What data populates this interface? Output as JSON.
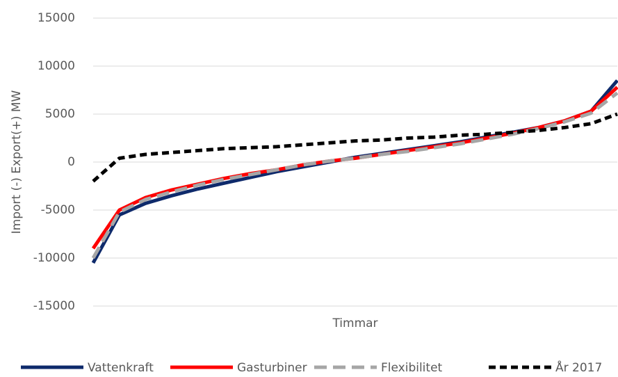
{
  "chart_data": {
    "type": "line",
    "y_label": "Import (-) Export(+)  MW",
    "x_label": "Timmar",
    "categories": [
      null,
      null,
      null,
      null,
      null,
      null,
      null,
      null,
      null,
      null,
      null,
      null,
      null,
      null,
      null,
      null,
      null,
      null,
      null,
      null,
      null
    ],
    "ylim": [
      -15000,
      15000
    ],
    "yticks": [
      -15000,
      -10000,
      -5000,
      0,
      5000,
      10000,
      15000
    ],
    "grid": true,
    "legend": "bottom",
    "series": [
      {
        "name": "Vattenkraft",
        "color": "#0e2a6b",
        "dash": "solid",
        "values": [
          -10500,
          -5500,
          -4300,
          -3500,
          -2800,
          -2200,
          -1600,
          -1000,
          -500,
          0,
          500,
          900,
          1300,
          1700,
          2100,
          2600,
          3100,
          3600,
          4300,
          5300,
          8500
        ]
      },
      {
        "name": "Gasturbiner",
        "color": "#ff0000",
        "dash": "solid",
        "values": [
          -9000,
          -5000,
          -3700,
          -2900,
          -2300,
          -1700,
          -1200,
          -800,
          -300,
          100,
          400,
          800,
          1200,
          1600,
          2000,
          2500,
          3000,
          3600,
          4300,
          5300,
          7800
        ]
      },
      {
        "name": "Flexibilitet",
        "color": "#a6a6a6",
        "dash": "long",
        "values": [
          -10000,
          -5200,
          -3900,
          -3100,
          -2400,
          -1800,
          -1300,
          -800,
          -300,
          100,
          400,
          800,
          1100,
          1500,
          1900,
          2400,
          2900,
          3500,
          4200,
          5100,
          7200
        ]
      },
      {
        "name": "År 2017",
        "color": "#000000",
        "dash": "short",
        "values": [
          -2000,
          400,
          800,
          1000,
          1200,
          1400,
          1500,
          1600,
          1800,
          2000,
          2200,
          2300,
          2500,
          2600,
          2800,
          2900,
          3100,
          3300,
          3600,
          4000,
          5000
        ]
      }
    ]
  }
}
